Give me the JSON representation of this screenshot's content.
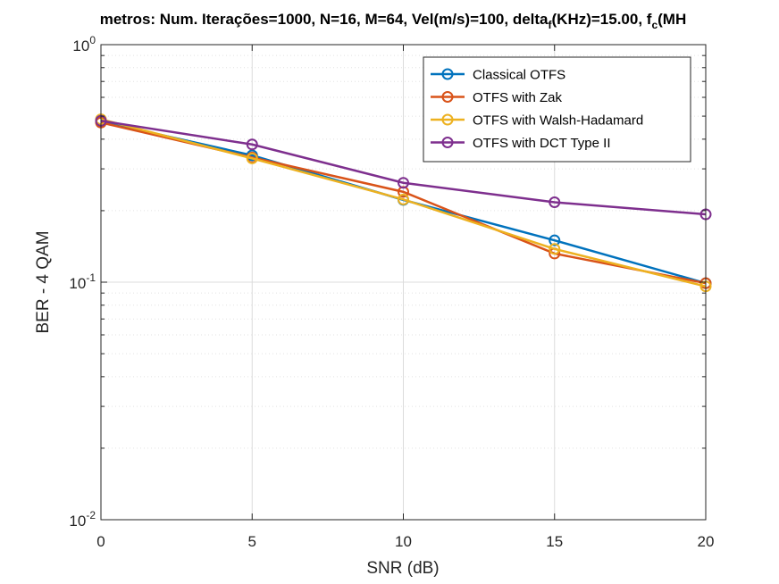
{
  "chart_data": {
    "type": "line",
    "title_parts": {
      "main": "metros: Num. Iterações=1000, N=16, M=64, Vel(m/s)=100, delta",
      "sub1": "f",
      "mid": "(KHz)=15.00, f",
      "sub2": "c",
      "end": "(MH"
    },
    "xlabel": "SNR (dB)",
    "ylabel": "BER - 4 QAM",
    "x": [
      0,
      5,
      10,
      15,
      20
    ],
    "xlim": [
      0,
      20
    ],
    "ylim": [
      0.01,
      1
    ],
    "yscale": "log",
    "grid": true,
    "legend_position": "top-right",
    "x_ticks": [
      "0",
      "5",
      "10",
      "15",
      "20"
    ],
    "y_ticks": [
      {
        "value": 1,
        "base": "10",
        "exp": "0"
      },
      {
        "value": 0.1,
        "base": "10",
        "exp": "-1"
      },
      {
        "value": 0.01,
        "base": "10",
        "exp": "-2"
      }
    ],
    "series": [
      {
        "name": "Classical OTFS",
        "color": "#0072BD",
        "values": [
          0.475,
          0.342,
          0.222,
          0.15,
          0.099
        ]
      },
      {
        "name": "OTFS with Zak",
        "color": "#D95319",
        "values": [
          0.47,
          0.335,
          0.24,
          0.132,
          0.099
        ]
      },
      {
        "name": "OTFS with Walsh-Hadamard",
        "color": "#EDB120",
        "values": [
          0.485,
          0.332,
          0.223,
          0.138,
          0.096
        ]
      },
      {
        "name": "OTFS with DCT Type II",
        "color": "#7E2F8E",
        "values": [
          0.478,
          0.38,
          0.262,
          0.217,
          0.193
        ]
      }
    ]
  }
}
